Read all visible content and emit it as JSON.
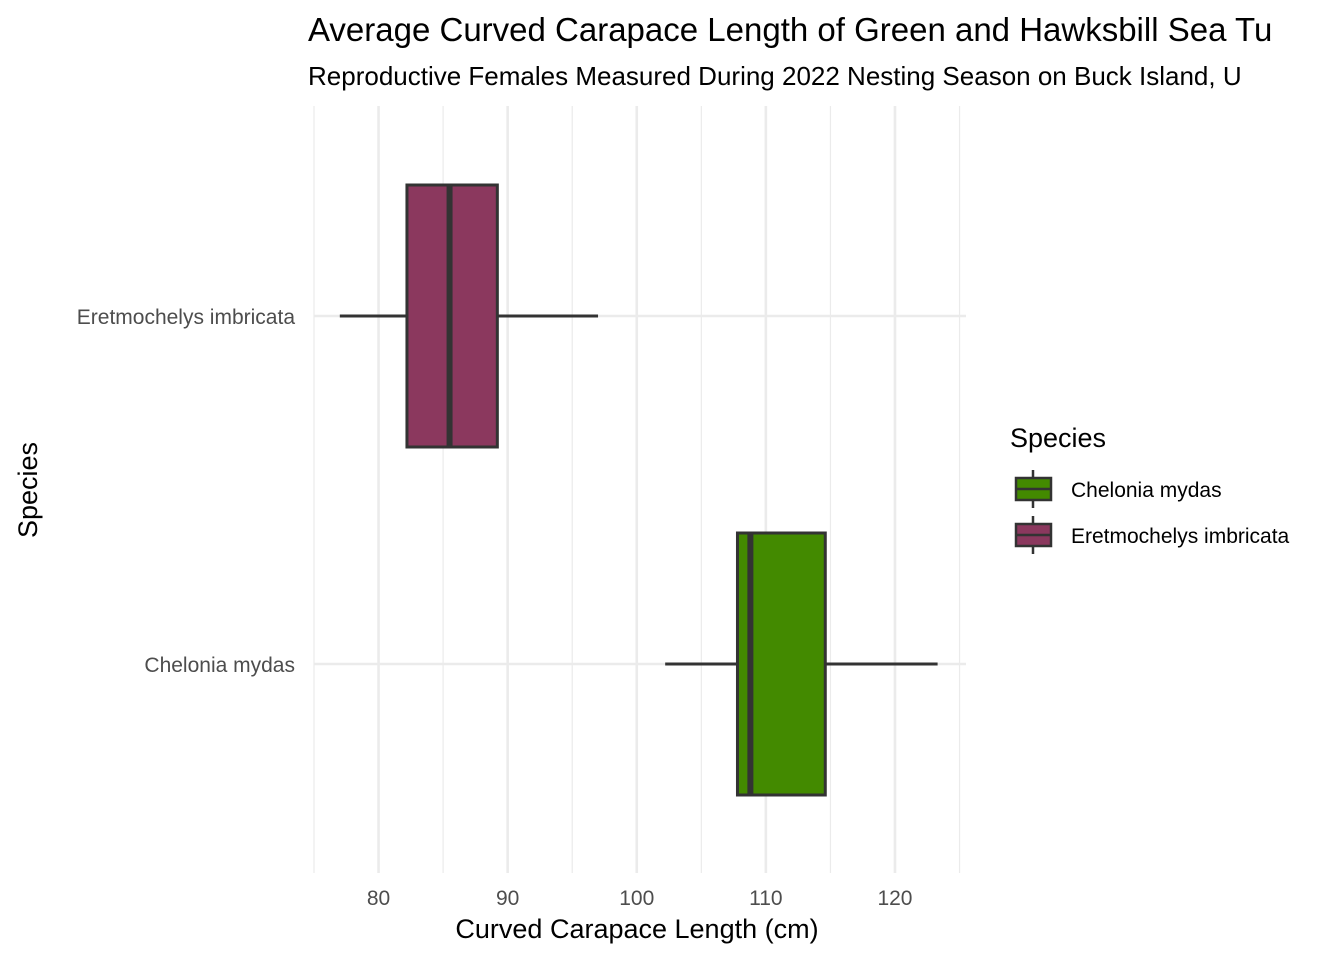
{
  "chart_data": {
    "type": "boxplot",
    "title": "Average Curved Carapace Length of Green and Hawksbill Sea Tu",
    "subtitle": "Reproductive Females Measured During 2022 Nesting Season on Buck Island, U",
    "xlabel": "Curved Carapace Length (cm)",
    "ylabel": "Species",
    "xlim": [
      75,
      125.5
    ],
    "x_ticks": [
      80,
      90,
      100,
      110,
      120
    ],
    "grid": true,
    "legend": {
      "title": "Species",
      "position": "right",
      "entries": [
        "Chelonia mydas",
        "Eretmochelys imbricata"
      ]
    },
    "categories": [
      "Chelonia mydas",
      "Eretmochelys imbricata"
    ],
    "series": [
      {
        "name": "Chelonia mydas",
        "color": "#438A00",
        "whisker_low": 102.2,
        "q1": 107.8,
        "median": 108.8,
        "q3": 114.6,
        "whisker_high": 123.3
      },
      {
        "name": "Eretmochelys imbricata",
        "color": "#8B385E",
        "whisker_low": 77.0,
        "q1": 82.2,
        "median": 85.5,
        "q3": 89.2,
        "whisker_high": 97.0
      }
    ]
  }
}
